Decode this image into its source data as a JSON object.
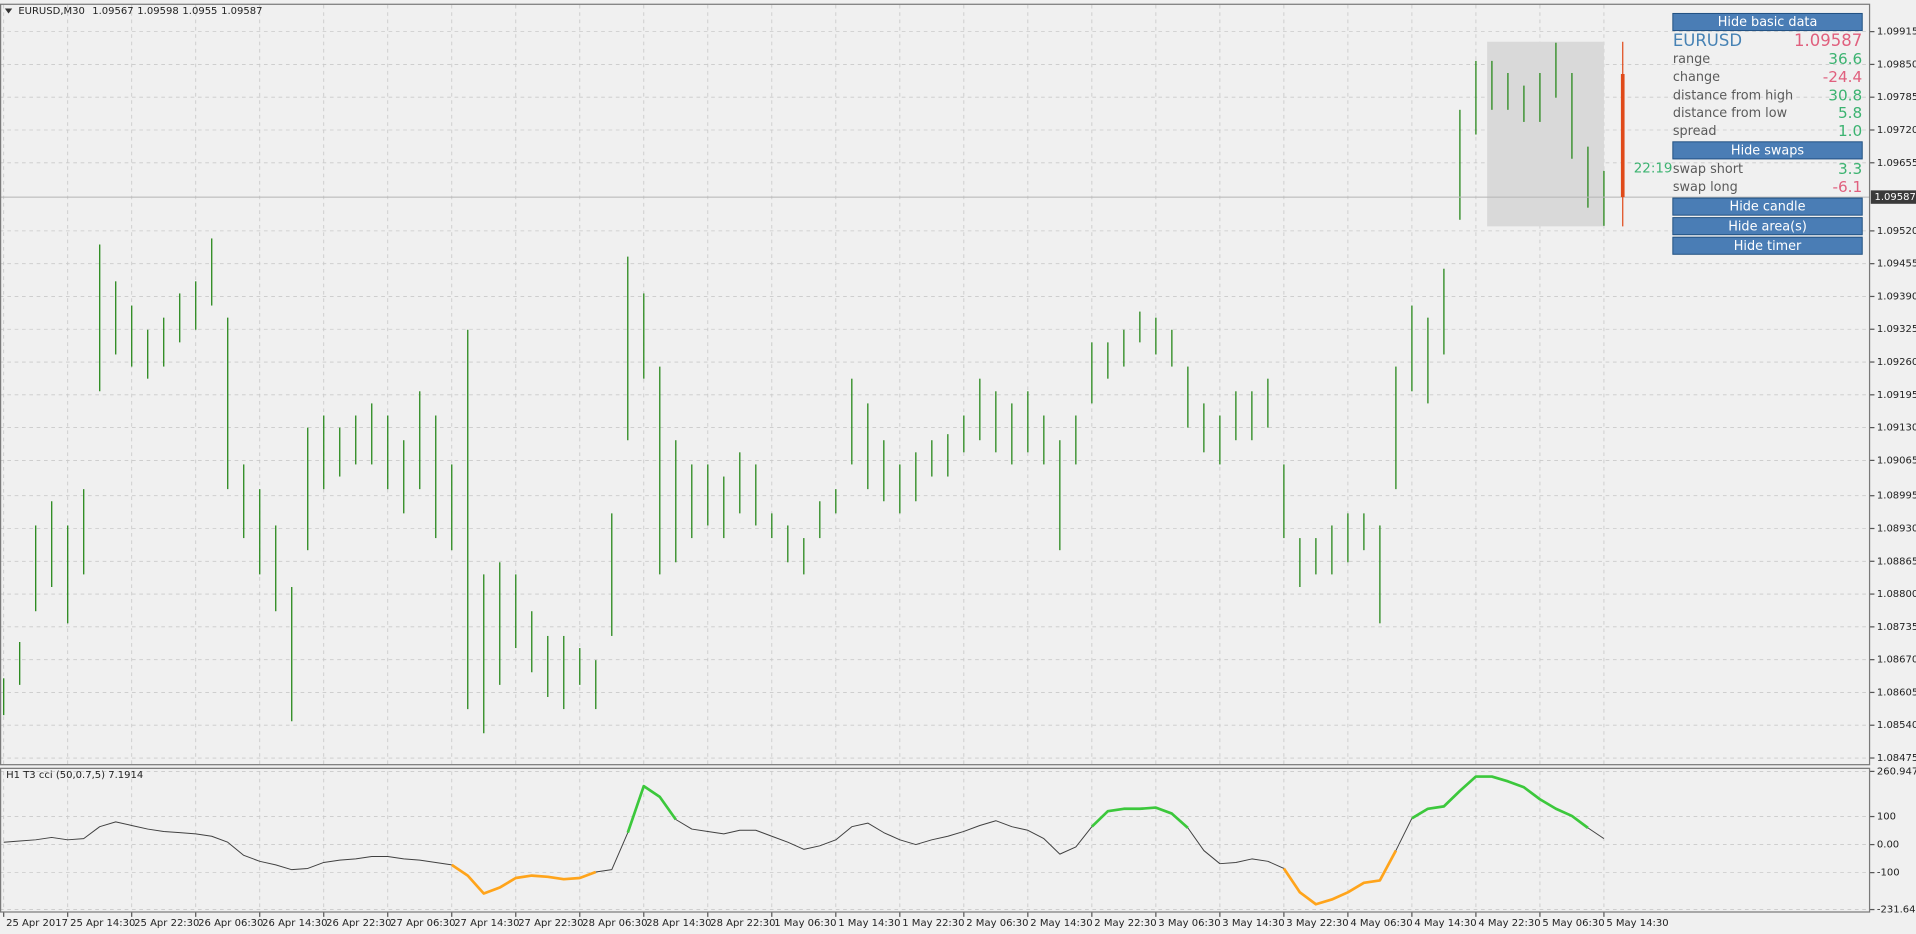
{
  "chart_data": [
    {
      "type": "ohlc",
      "symbol": "EURUSD,M30",
      "ohlc": [
        1.09567,
        1.09598,
        1.0955,
        1.09587
      ],
      "color": "#2e8b22",
      "grid": true,
      "high": [
        1.08633,
        1.08705,
        1.08936,
        1.08984,
        1.08936,
        1.09008,
        1.09493,
        1.0942,
        1.09372,
        1.09324,
        1.09348,
        1.09396,
        1.0942,
        1.09505,
        1.09348,
        1.09057,
        1.09008,
        1.08936,
        1.08814,
        1.0913,
        1.09154,
        1.0913,
        1.09154,
        1.09178,
        1.09154,
        1.09105,
        1.09202,
        1.09154,
        1.09057,
        1.09324,
        1.08839,
        1.08863,
        1.08839,
        1.08766,
        1.08717,
        1.08717,
        1.08693,
        1.08669,
        1.0896,
        1.09469,
        1.09396,
        1.09251,
        1.09105,
        1.09057,
        1.09057,
        1.09033,
        1.09081,
        1.09057,
        1.0896,
        1.08936,
        1.08911,
        1.08984,
        1.09008,
        1.09227,
        1.09178,
        1.09105,
        1.09057,
        1.09081,
        1.09105,
        1.09117,
        1.09154,
        1.09227,
        1.09202,
        1.09178,
        1.09202,
        1.09154,
        1.09105,
        1.09154,
        1.09299,
        1.09299,
        1.09324,
        1.0936,
        1.09348,
        1.09324,
        1.09251,
        1.09178,
        1.09154,
        1.09202,
        1.09202,
        1.09227,
        1.09057,
        1.08911,
        1.08911,
        1.08936,
        1.0896,
        1.0896,
        1.08936,
        1.09251,
        1.09372,
        1.09348,
        1.09445,
        1.0976,
        1.09857,
        1.09857,
        1.09833,
        1.09808,
        1.09833,
        1.09893,
        1.09833,
        1.09687,
        1.09639
      ],
      "low": [
        1.0856,
        1.0862,
        1.08766,
        1.08814,
        1.08742,
        1.08839,
        1.09202,
        1.09275,
        1.09251,
        1.09227,
        1.09251,
        1.09299,
        1.09324,
        1.09372,
        1.09008,
        1.08911,
        1.08839,
        1.08766,
        1.08548,
        1.08887,
        1.09008,
        1.09033,
        1.09057,
        1.09057,
        1.09008,
        1.0896,
        1.09008,
        1.08911,
        1.08887,
        1.08572,
        1.08524,
        1.0862,
        1.08693,
        1.08645,
        1.08596,
        1.08572,
        1.0862,
        1.08572,
        1.08717,
        1.09105,
        1.09227,
        1.08839,
        1.08863,
        1.08911,
        1.08936,
        1.08911,
        1.0896,
        1.08936,
        1.08911,
        1.08863,
        1.08839,
        1.08911,
        1.0896,
        1.09057,
        1.09008,
        1.08984,
        1.0896,
        1.08984,
        1.09033,
        1.09033,
        1.09081,
        1.09105,
        1.09081,
        1.09057,
        1.09081,
        1.09057,
        1.08887,
        1.09057,
        1.09178,
        1.09227,
        1.09251,
        1.09299,
        1.09275,
        1.09251,
        1.0913,
        1.09081,
        1.09057,
        1.09105,
        1.09105,
        1.0913,
        1.08911,
        1.08814,
        1.08839,
        1.08839,
        1.08863,
        1.08887,
        1.08742,
        1.09008,
        1.09202,
        1.09178,
        1.09275,
        1.09542,
        1.09711,
        1.0976,
        1.0976,
        1.09736,
        1.09736,
        1.09784,
        1.09663,
        1.09566,
        1.0953
      ],
      "xlim": [
        -0.23,
        116.6
      ],
      "xticks": [
        {
          "value": 0,
          "label": "25 Apr 2017"
        },
        {
          "value": 4,
          "label": "25 Apr 14:30"
        },
        {
          "value": 8,
          "label": "25 Apr 22:30"
        },
        {
          "value": 12,
          "label": "26 Apr 06:30"
        },
        {
          "value": 16,
          "label": "26 Apr 14:30"
        },
        {
          "value": 20,
          "label": "26 Apr 22:30"
        },
        {
          "value": 24,
          "label": "27 Apr 06:30"
        },
        {
          "value": 28,
          "label": "27 Apr 14:30"
        },
        {
          "value": 32,
          "label": "27 Apr 22:30"
        },
        {
          "value": 36,
          "label": "28 Apr 06:30"
        },
        {
          "value": 40,
          "label": "28 Apr 14:30"
        },
        {
          "value": 44,
          "label": "28 Apr 22:30"
        },
        {
          "value": 48,
          "label": "1 May 06:30"
        },
        {
          "value": 52,
          "label": "1 May 14:30"
        },
        {
          "value": 56,
          "label": "1 May 22:30"
        },
        {
          "value": 60,
          "label": "2 May 06:30"
        },
        {
          "value": 64,
          "label": "2 May 14:30"
        },
        {
          "value": 68,
          "label": "2 May 22:30"
        },
        {
          "value": 72,
          "label": "3 May 06:30"
        },
        {
          "value": 76,
          "label": "3 May 14:30"
        },
        {
          "value": 80,
          "label": "3 May 22:30"
        },
        {
          "value": 84,
          "label": "4 May 06:30"
        },
        {
          "value": 88,
          "label": "4 May 14:30"
        },
        {
          "value": 92,
          "label": "4 May 22:30"
        },
        {
          "value": 96,
          "label": "5 May 06:30"
        },
        {
          "value": 100,
          "label": "5 May 14:30"
        }
      ],
      "ylim": [
        1.08463,
        1.09968
      ],
      "yticks": [
        1.08475,
        {
          "value": 1.0854,
          "label": "1.08540"
        },
        1.08605,
        {
          "value": 1.0867,
          "label": "1.08670"
        },
        1.08735,
        {
          "value": 1.088,
          "label": "1.08800"
        },
        1.08865,
        {
          "value": 1.0893,
          "label": "1.08930"
        },
        1.08995,
        1.09065,
        {
          "value": 1.0913,
          "label": "1.09130"
        },
        1.09195,
        {
          "value": 1.0926,
          "label": "1.09260"
        },
        1.09325,
        {
          "value": 1.0939,
          "label": "1.09390"
        },
        1.09455,
        {
          "value": 1.0952,
          "label": "1.09520"
        },
        1.09655,
        {
          "value": 1.0972,
          "label": "1.09720"
        },
        1.09785,
        {
          "value": 1.0985,
          "label": "1.09850"
        },
        1.09915
      ],
      "bid": 1.09587,
      "day_candle": {
        "open": 1.09831,
        "high": 1.09895,
        "low": 1.09529,
        "close": 1.09587,
        "color": "#e04a1a"
      },
      "area": {
        "from": 92.7,
        "to": 100,
        "high": 1.09895,
        "low": 1.09529,
        "color": "#d9d9d9"
      },
      "timer": "22:19",
      "timer_color": "#3cb371"
    },
    {
      "type": "line",
      "title": "H1 T3 cci (50,0.7,5) 7.1914",
      "color": "#404040",
      "up_color": "#3cc83c",
      "down_color": "#ffa41b",
      "levels": [
        100,
        -100
      ],
      "values": [
        8.5,
        12.8,
        17,
        25.5,
        17,
        21.3,
        63.8,
        80.9,
        68.1,
        55.3,
        46.8,
        42.6,
        38.3,
        29.8,
        8.5,
        -38.3,
        -59.6,
        -72.3,
        -89.4,
        -85.1,
        -63.8,
        -55.3,
        -51.1,
        -42.6,
        -42.6,
        -51.1,
        -55.3,
        -63.8,
        -72.3,
        -110.6,
        -174.5,
        -153.2,
        -119.1,
        -110.6,
        -114.9,
        -123.4,
        -119.1,
        -97.9,
        -89.4,
        42.6,
        208.5,
        170.2,
        89.4,
        55.3,
        46.8,
        38.3,
        51.1,
        51.1,
        29.8,
        8.5,
        -17,
        -4.3,
        17,
        63.8,
        76.6,
        42.6,
        17,
        0,
        17,
        29.8,
        46.8,
        68.1,
        85.1,
        63.8,
        51.1,
        21.3,
        -34,
        -8.5,
        63.8,
        119.1,
        127.7,
        127.7,
        131.9,
        110.6,
        59.6,
        -21.3,
        -68.1,
        -63.8,
        -51.1,
        -59.6,
        -85.1,
        -170.2,
        -212.8,
        -195.7,
        -170.2,
        -136.2,
        -127.7,
        -21.3,
        93.6,
        127.7,
        136.2,
        191.5,
        242.6,
        242.6,
        225.5,
        204.3,
        161.7,
        127.7,
        102.1,
        59.6,
        21.3
      ],
      "ylim": [
        -231.6435,
        260.9475
      ],
      "yticks": [
        260.9475,
        100,
        {
          "value": 0,
          "label": "0.00"
        },
        -100,
        -231.6435
      ]
    }
  ],
  "info_panel": {
    "buttons": [
      "Hide basic data",
      "Hide swaps",
      "Hide candle",
      "Hide area(s)",
      "Hide timer"
    ],
    "symbol": "EURUSD",
    "symbol_color": "#4682b4",
    "price": "1.09587",
    "price_color": "#e0607e",
    "rows": [
      {
        "label": "range",
        "value": "36.6",
        "color": "#3cb371"
      },
      {
        "label": "change",
        "value": "-24.4",
        "color": "#e0607e"
      },
      {
        "label": "distance from high",
        "value": "30.8",
        "color": "#3cb371"
      },
      {
        "label": "distance from low",
        "value": "5.8",
        "color": "#3cb371"
      },
      {
        "label": "spread",
        "value": "1.0",
        "color": "#3cb371"
      }
    ],
    "swaps": [
      {
        "label": "swap short",
        "value": "3.3",
        "color": "#3cb371"
      },
      {
        "label": "swap long",
        "value": "-6.1",
        "color": "#e0607e"
      }
    ]
  }
}
